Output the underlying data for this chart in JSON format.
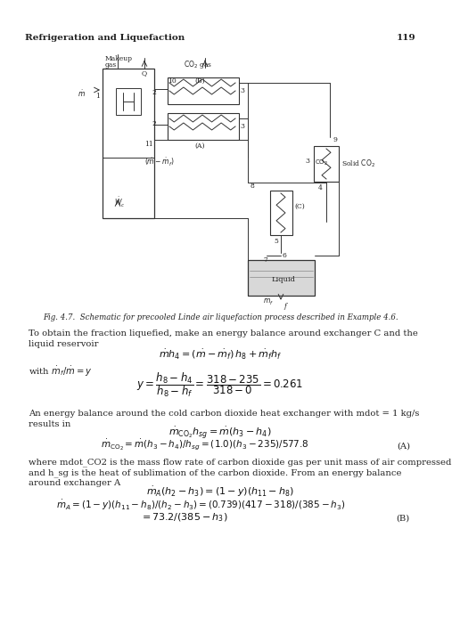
{
  "page_title_left": "Refrigeration and Liquefaction",
  "page_number": "119",
  "fig_caption": "Fig. 4.7.  Schematic for precooled Linde air liquefaction process described in Example 4.6.",
  "para1_line1": "To obtain the fraction liquefied, make an energy balance around exchanger C and the",
  "para1_line2": "liquid reservoir",
  "eq1": "mhdot_4 = (mdot - mdot_f) h_8 + mdot_f h_f",
  "with_line": "with mdot_f/mdot = y",
  "eq2_num": "318 - 235",
  "eq2_den1": "h_8 - h_4",
  "eq2_den2": "h_8 - h_f",
  "eq2_num2": "318 - 0",
  "eq2_result": "= 0.261",
  "para2_line1": "An energy balance around the cold carbon dioxide heat exchanger with mdot = 1 kg/s",
  "para2_line2": "results in",
  "eq3a": "mdot_CO2 h_sg = mdot(h_3 - h_4)",
  "eq3b": "mdot_CO2 = mdot(h_3 - h_4)/h_sg = (1.0)(h_3 - 235)/577.8",
  "label_A": "(A)",
  "para3_line1": "where mdot_CO2 is the mass flow rate of carbon dioxide gas per unit mass of air compressed",
  "para3_line2": "and h_sg is the heat of sublimation of the carbon dioxide. From an energy balance",
  "para3_line3": "around exchanger A",
  "eq4a": "mdot_A(h_2 - h_3) = (1 - y)(h_11 - h_8)",
  "eq4b": "mdot_A = (1 - y)(h_11 - h_8)/(h_2 - h_3) = (0.739)(417 - 318)/(385 - h_3)",
  "eq4c": "= 73.2/(385 - h_3)",
  "label_B": "(B)",
  "bg": "#ffffff"
}
